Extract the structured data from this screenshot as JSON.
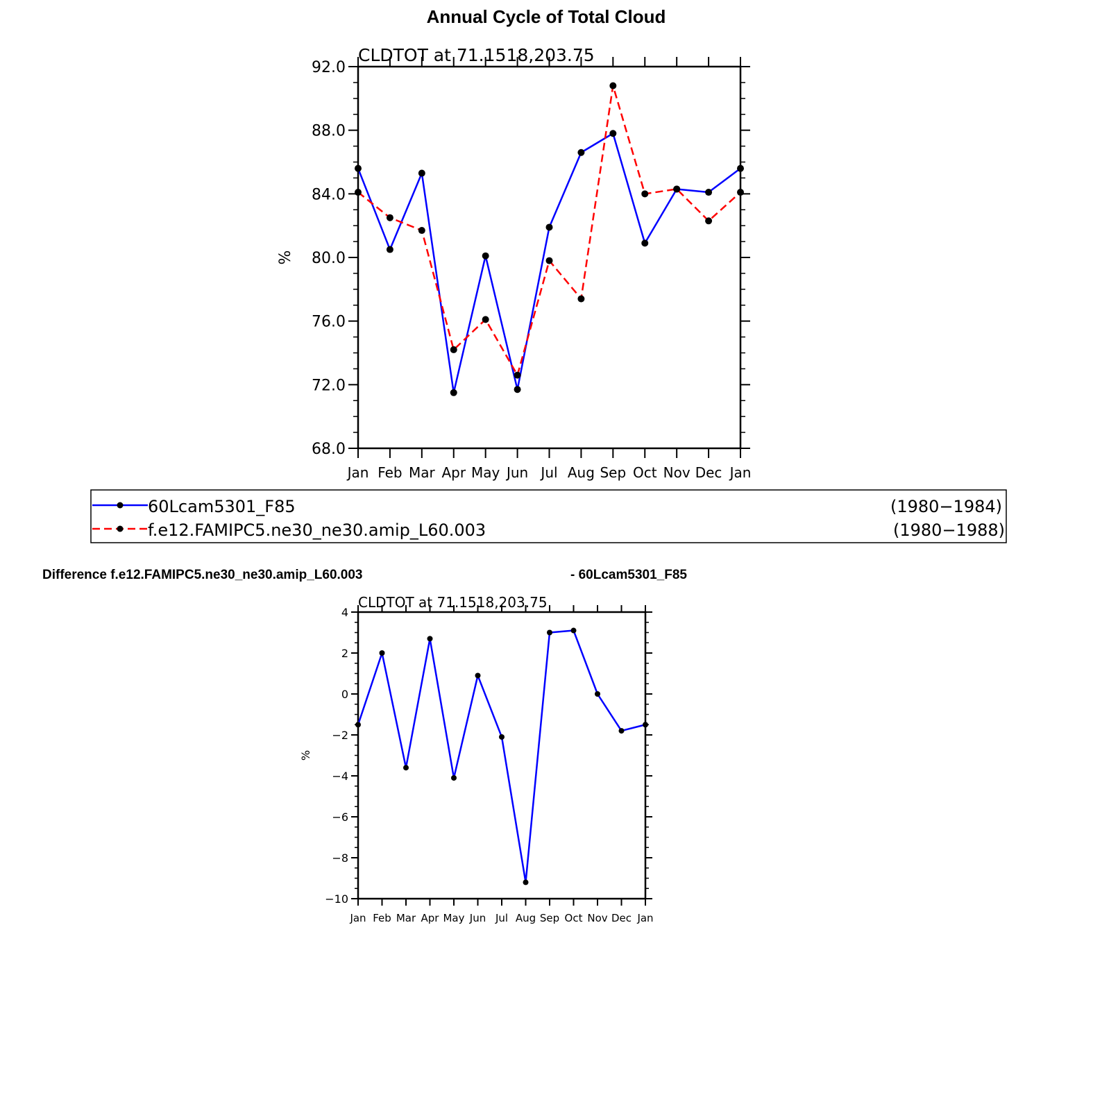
{
  "figure": {
    "title": "Annual Cycle of Total Cloud",
    "difference_title_left": "Difference f.e12.FAMIPC5.ne30_ne30.amip_L60.003",
    "difference_title_right": "- 60Lcam5301_F85"
  },
  "legend": {
    "entries": [
      {
        "name": "60Lcam5301_F85",
        "years": "(1980−1984)",
        "color": "#0000ff",
        "dash": "solid"
      },
      {
        "name": "f.e12.FAMIPC5.ne30_ne30.amip_L60.003",
        "years": "(1980−1988)",
        "color": "#ff0000",
        "dash": "dashed"
      }
    ]
  },
  "chart_data": [
    {
      "type": "line",
      "subtitle": "CLDTOT  at  71.1518,203.75",
      "ylabel": "%",
      "xlabel": "",
      "categories": [
        "Jan",
        "Feb",
        "Mar",
        "Apr",
        "May",
        "Jun",
        "Jul",
        "Aug",
        "Sep",
        "Oct",
        "Nov",
        "Dec",
        "Jan"
      ],
      "ylim": [
        68,
        92
      ],
      "yticks": [
        "68.0",
        "72.0",
        "76.0",
        "80.0",
        "84.0",
        "88.0",
        "92.0"
      ],
      "grid": false,
      "series": [
        {
          "name": "60Lcam5301_F85",
          "color": "#0000ff",
          "dash": "solid",
          "values": [
            85.6,
            80.5,
            85.3,
            71.5,
            80.1,
            71.7,
            81.9,
            86.6,
            87.8,
            80.9,
            84.3,
            84.1,
            85.6
          ]
        },
        {
          "name": "f.e12.FAMIPC5.ne30_ne30.amip_L60.003",
          "color": "#ff0000",
          "dash": "dashed",
          "values": [
            84.1,
            82.5,
            81.7,
            74.2,
            76.1,
            72.6,
            79.8,
            77.4,
            90.8,
            84.0,
            84.3,
            82.3,
            84.1
          ]
        }
      ]
    },
    {
      "type": "line",
      "subtitle": "CLDTOT  at  71.1518,203.75",
      "ylabel": "%",
      "xlabel": "",
      "categories": [
        "Jan",
        "Feb",
        "Mar",
        "Apr",
        "May",
        "Jun",
        "Jul",
        "Aug",
        "Sep",
        "Oct",
        "Nov",
        "Dec",
        "Jan"
      ],
      "ylim": [
        -10,
        4
      ],
      "yticks": [
        "−10",
        "−8",
        "−6",
        "−4",
        "−2",
        "0",
        "2",
        "4"
      ],
      "grid": false,
      "series": [
        {
          "color": "#0000ff",
          "dash": "solid",
          "values": [
            -1.5,
            2.0,
            -3.6,
            2.7,
            -4.1,
            0.9,
            -2.1,
            -9.2,
            3.0,
            3.1,
            0.0,
            -1.8,
            -1.5
          ]
        }
      ]
    }
  ]
}
